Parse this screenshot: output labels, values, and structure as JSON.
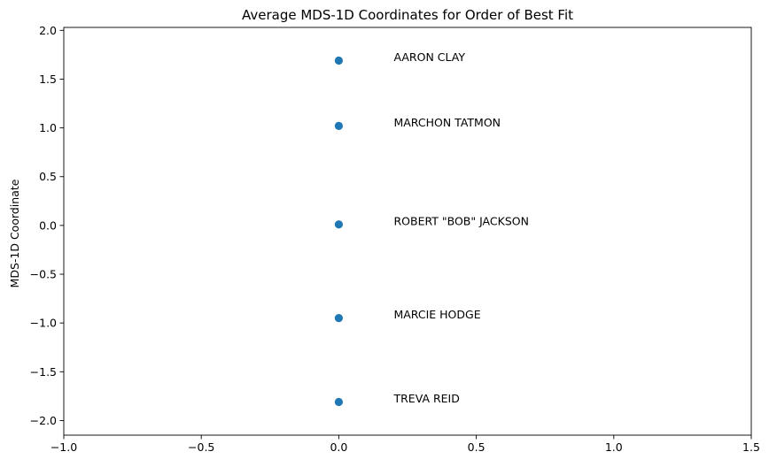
{
  "chart_data": {
    "type": "scatter",
    "title": "Average MDS-1D Coordinates for Order of Best Fit",
    "xlabel": "",
    "ylabel": "MDS-1D Coordinate",
    "xlim": [
      -1.0,
      1.5
    ],
    "ylim": [
      -2.15,
      2.03
    ],
    "x_ticks": [
      -1.0,
      -0.5,
      0.0,
      0.5,
      1.0,
      1.5
    ],
    "x_tick_labels": [
      "−1.0",
      "−0.5",
      "0.0",
      "0.5",
      "1.0",
      "1.5"
    ],
    "y_ticks": [
      2.0,
      1.5,
      1.0,
      0.5,
      0.0,
      -0.5,
      -1.0,
      -1.5,
      -2.0
    ],
    "y_tick_labels": [
      "2.0",
      "1.5",
      "1.0",
      "0.5",
      "0.0",
      "−0.5",
      "−1.0",
      "−1.5",
      "−2.0"
    ],
    "grid": false,
    "label_x_offset": 0.2,
    "point_color": "#1f77b4",
    "points": [
      {
        "label": "AARON CLAY",
        "x": 0.0,
        "y": 1.69
      },
      {
        "label": "MARCHON TATMON",
        "x": 0.0,
        "y": 1.02
      },
      {
        "label": "ROBERT \"BOB\" JACKSON",
        "x": 0.0,
        "y": 0.01
      },
      {
        "label": "MARCIE HODGE",
        "x": 0.0,
        "y": -0.95
      },
      {
        "label": "TREVA REID",
        "x": 0.0,
        "y": -1.81
      }
    ]
  }
}
